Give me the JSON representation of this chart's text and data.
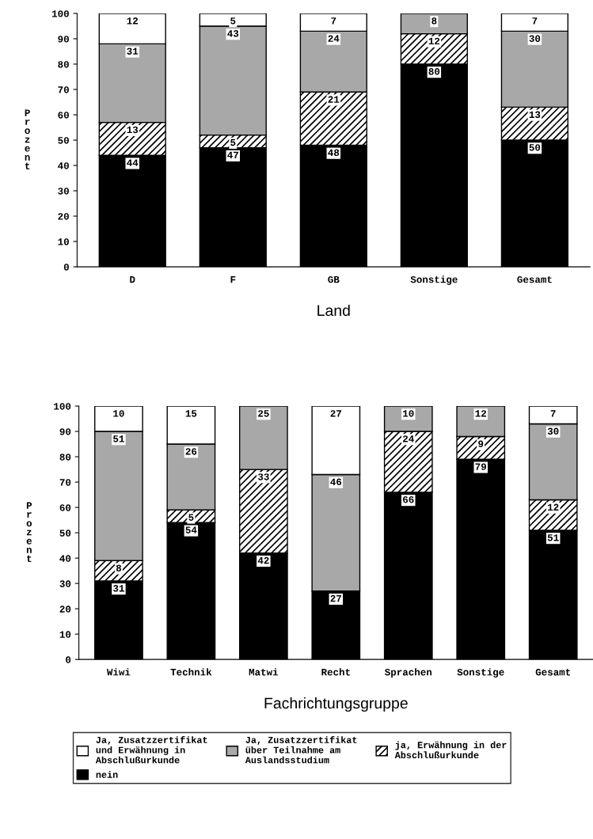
{
  "chart_data": [
    {
      "type": "bar",
      "stacked": true,
      "xlabel": "Land",
      "ylabel": "Prozent",
      "categories": [
        "D",
        "F",
        "GB",
        "Sonstige",
        "Gesamt"
      ],
      "ylim": [
        0,
        100
      ],
      "yticks": [
        0,
        10,
        20,
        30,
        40,
        50,
        60,
        70,
        80,
        90,
        100
      ],
      "grid": false,
      "data_labels": true,
      "series": [
        {
          "color": "#000000",
          "values": [
            44,
            47,
            48,
            80,
            50
          ]
        },
        {
          "color": "#000000",
          "values": [
            13,
            5,
            21,
            12,
            13
          ]
        },
        {
          "color": "#a8a8a8",
          "values": [
            31,
            43,
            24,
            8,
            30
          ]
        },
        {
          "color": "#ffffff",
          "values": [
            12,
            5,
            7,
            null,
            7
          ]
        }
      ]
    },
    {
      "type": "bar",
      "stacked": true,
      "xlabel": "Fachrichtungsgruppe",
      "ylabel": "Prozent",
      "categories": [
        "Wiwi",
        "Technik",
        "Matwi",
        "Recht",
        "Sprachen",
        "Sonstige",
        "Gesamt"
      ],
      "ylim": [
        0,
        100
      ],
      "yticks": [
        0,
        10,
        20,
        30,
        40,
        50,
        60,
        70,
        80,
        90,
        100
      ],
      "grid": false,
      "data_labels": true,
      "legend": "bottom",
      "series": [
        {
          "name": "nein",
          "color": "#000000",
          "values": [
            31,
            54,
            42,
            27,
            66,
            79,
            51
          ]
        },
        {
          "name": "ja, Erwähnung in der Abschlußurkunde",
          "color": "#000000",
          "values": [
            8,
            5,
            33,
            null,
            24,
            9,
            12
          ]
        },
        {
          "name": "Ja, Zusatzzertifikat über Teilnahme am Auslandsstudium",
          "color": "#a8a8a8",
          "values": [
            51,
            26,
            25,
            46,
            10,
            12,
            30
          ]
        },
        {
          "name": "Ja, Zusatzzertifikat und Erwähnung in Abschlußurkunde",
          "color": "#ffffff",
          "values": [
            10,
            15,
            null,
            27,
            null,
            null,
            7
          ]
        }
      ]
    }
  ]
}
